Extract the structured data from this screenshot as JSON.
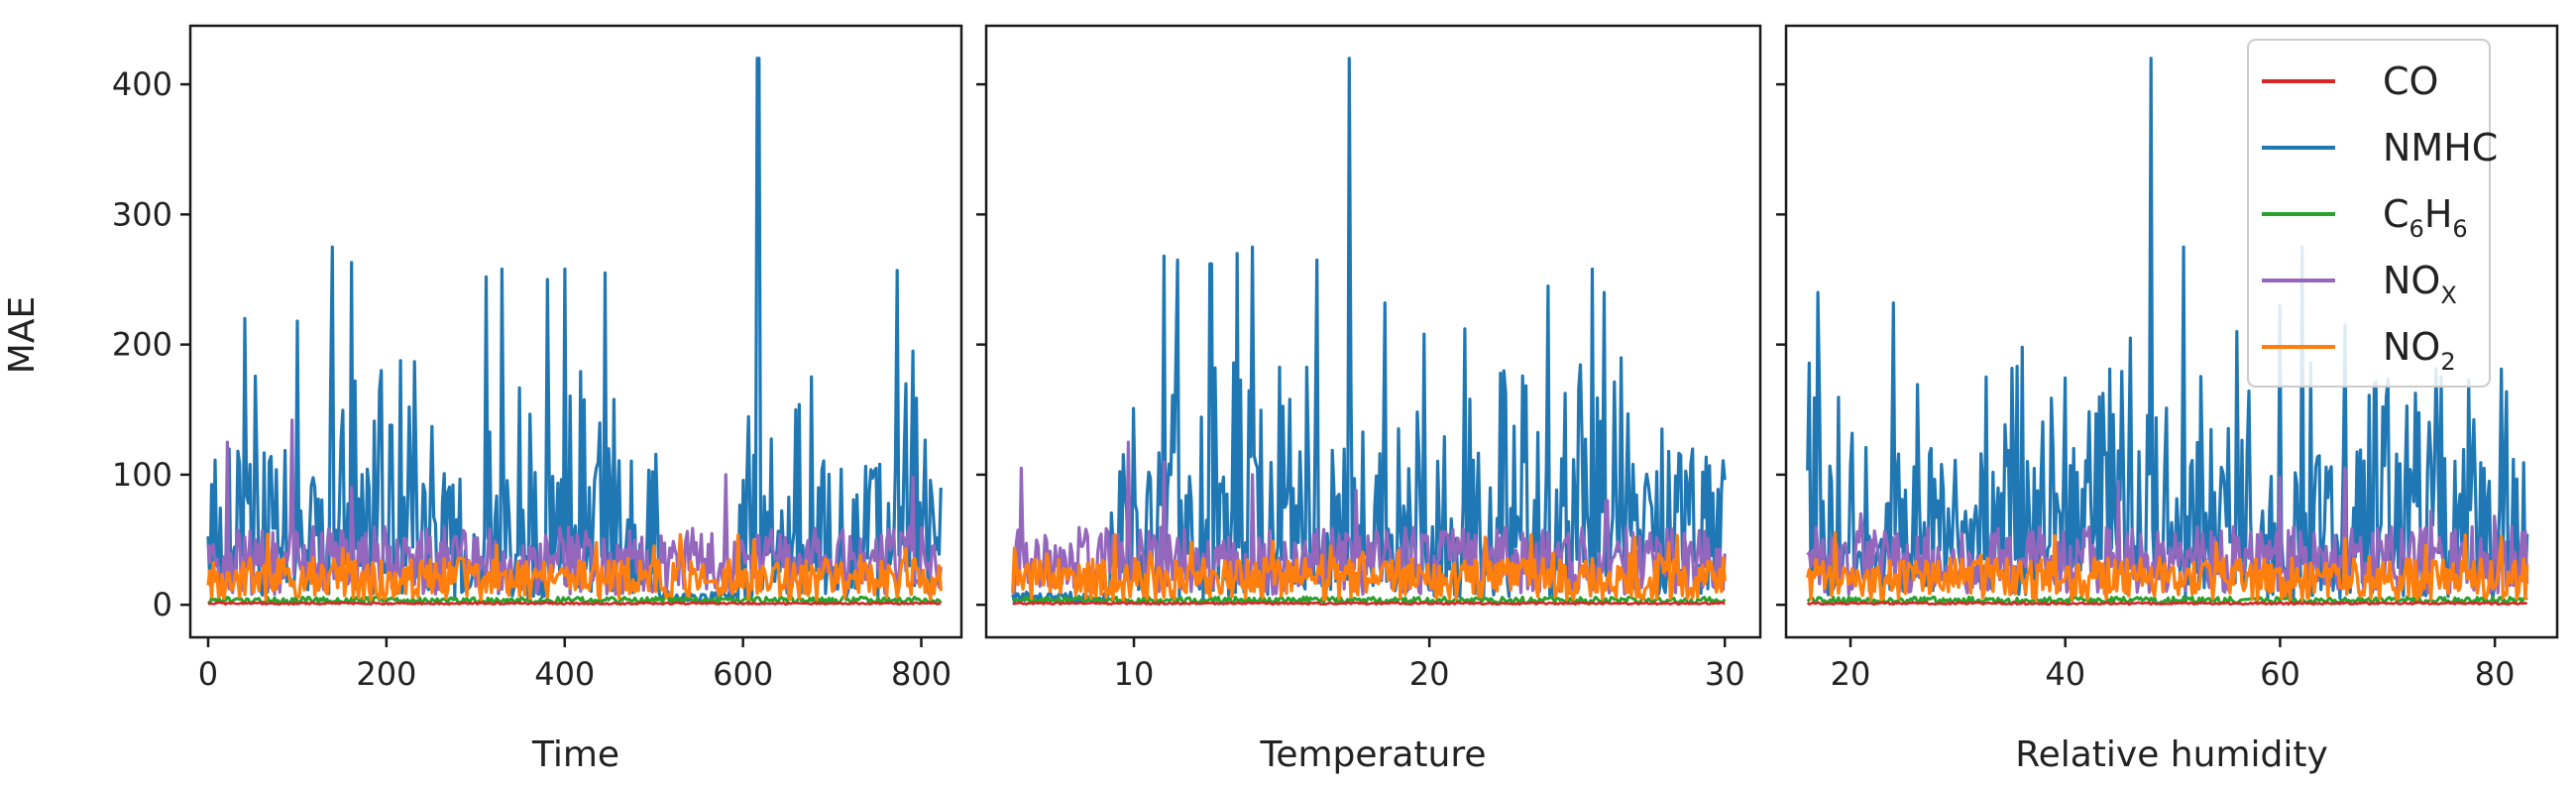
{
  "chart_data": {
    "type": "line",
    "ylabel": "MAE",
    "ylim": [
      -25,
      445
    ],
    "yticks": [
      0,
      100,
      200,
      300,
      400
    ],
    "legend": {
      "placement": "top-right",
      "entries": [
        {
          "key": "CO",
          "main": "CO",
          "sub": "",
          "color": "#d62728"
        },
        {
          "key": "NMHC",
          "main": "NMHC",
          "sub": "",
          "color": "#1f77b4"
        },
        {
          "key": "C6H6",
          "main": "C",
          "sub": "6",
          "main2": "H",
          "sub2": "6",
          "color": "#2ca02c"
        },
        {
          "key": "NOX",
          "main": "NO",
          "sub": "X",
          "color": "#9467bd"
        },
        {
          "key": "NO2",
          "main": "NO",
          "sub": "2",
          "color": "#ff7f0e"
        }
      ]
    },
    "panels": [
      {
        "xlabel": "Time",
        "xlim": [
          -20,
          845
        ],
        "xticks": [
          0,
          200,
          400,
          600,
          800
        ],
        "x_range": [
          0,
          822
        ],
        "n_points": 420,
        "nmhc_peaks": [
          [
            42,
            220
          ],
          [
            100,
            218
          ],
          [
            140,
            275
          ],
          [
            160,
            263
          ],
          [
            205,
            138
          ],
          [
            225,
            152
          ],
          [
            312,
            252
          ],
          [
            330,
            258
          ],
          [
            380,
            250
          ],
          [
            400,
            258
          ],
          [
            445,
            255
          ],
          [
            617,
            420
          ],
          [
            660,
            150
          ],
          [
            773,
            257
          ],
          [
            790,
            195
          ],
          [
            822,
            90
          ]
        ],
        "nmhc_gaps": [
          [
            505,
            595
          ]
        ],
        "nox_peaks": [
          [
            22,
            125
          ],
          [
            95,
            142
          ],
          [
            160,
            90
          ],
          [
            580,
            100
          ],
          [
            790,
            98
          ]
        ]
      },
      {
        "xlabel": "Temperature",
        "xlim": [
          5.0,
          31.2
        ],
        "xticks": [
          10,
          20,
          30
        ],
        "x_range": [
          5.9,
          30.0
        ],
        "n_points": 420,
        "nmhc_peaks": [
          [
            11.0,
            268
          ],
          [
            11.5,
            265
          ],
          [
            12.6,
            262
          ],
          [
            13.5,
            270
          ],
          [
            14.0,
            275
          ],
          [
            16.2,
            265
          ],
          [
            17.3,
            420
          ],
          [
            18.5,
            232
          ],
          [
            19.8,
            208
          ],
          [
            21.2,
            212
          ],
          [
            22.4,
            178
          ],
          [
            24.0,
            245
          ],
          [
            25.5,
            258
          ],
          [
            25.9,
            240
          ],
          [
            27.3,
            90
          ]
        ],
        "nmhc_gaps": [
          [
            5.9,
            9.2
          ]
        ],
        "nox_peaks": [
          [
            6.2,
            105
          ],
          [
            9.8,
            125
          ],
          [
            11.0,
            110
          ],
          [
            14.0,
            100
          ],
          [
            17.5,
            88
          ],
          [
            26.0,
            80
          ]
        ]
      },
      {
        "xlabel": "Relative humidity",
        "xlim": [
          14.0,
          85.8
        ],
        "xticks": [
          20,
          40,
          60,
          80
        ],
        "x_range": [
          16.0,
          83.0
        ],
        "n_points": 420,
        "nmhc_peaks": [
          [
            17.0,
            240
          ],
          [
            24.0,
            232
          ],
          [
            36.0,
            198
          ],
          [
            46.0,
            205
          ],
          [
            48.0,
            420
          ],
          [
            51.0,
            275
          ],
          [
            56.0,
            210
          ],
          [
            60.0,
            230
          ],
          [
            62.0,
            275
          ],
          [
            66.0,
            215
          ],
          [
            75.0,
            175
          ],
          [
            80.5,
            75
          ]
        ],
        "nmhc_gaps": [],
        "nox_peaks": [
          [
            17.5,
            50
          ],
          [
            21.0,
            70
          ],
          [
            45.0,
            95
          ],
          [
            60.0,
            98
          ],
          [
            66.0,
            105
          ],
          [
            74.0,
            72
          ],
          [
            80.0,
            68
          ]
        ]
      }
    ]
  }
}
